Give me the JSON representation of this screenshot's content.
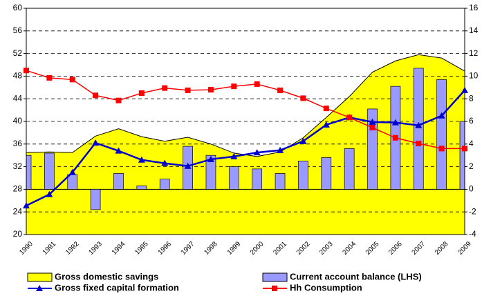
{
  "chart_data": {
    "type": "combo",
    "categories": [
      "1990",
      "1991",
      "1992",
      "1993",
      "1994",
      "1995",
      "1996",
      "1997",
      "1998",
      "1999",
      "2000",
      "2001",
      "2002",
      "2003",
      "2004",
      "2005",
      "2006",
      "2007",
      "2008",
      "2009"
    ],
    "ylim": [
      20,
      60
    ],
    "yticks": [
      20,
      24,
      28,
      32,
      36,
      40,
      44,
      48,
      52,
      56,
      60
    ],
    "y2lim": [
      -4,
      16
    ],
    "y2ticks": [
      -4,
      -2,
      0,
      2,
      4,
      6,
      8,
      10,
      12,
      14,
      16
    ],
    "grid": true,
    "series": [
      {
        "name": "Gross domestic savings",
        "type": "area",
        "color": "#ffff00",
        "values": [
          34.5,
          34.6,
          34.5,
          37.4,
          38.7,
          37.3,
          36.5,
          37.2,
          36.0,
          34.4,
          33.8,
          34.6,
          37.1,
          40.7,
          44.4,
          48.7,
          50.7,
          51.8,
          51.2,
          48.9
        ]
      },
      {
        "name": "Current account balance (LHS)",
        "type": "bar",
        "axis": "y2",
        "color": "#9999ff",
        "values": [
          3.0,
          3.2,
          1.3,
          -1.8,
          1.4,
          0.3,
          0.9,
          3.8,
          3.0,
          2.0,
          1.8,
          1.4,
          2.5,
          2.8,
          3.6,
          7.1,
          9.1,
          10.7,
          9.7,
          6.0
        ]
      },
      {
        "name": "Gross fixed capital formation",
        "type": "line",
        "marker": "triangle",
        "color": "#0000cc",
        "values": [
          25.1,
          27.1,
          31.0,
          36.2,
          34.8,
          33.2,
          32.6,
          32.1,
          33.3,
          33.8,
          34.5,
          34.9,
          36.5,
          39.4,
          40.7,
          39.9,
          39.8,
          39.3,
          41.0,
          45.5
        ]
      },
      {
        "name": "Hh Consumption",
        "type": "line",
        "marker": "square",
        "color": "#ff0000",
        "values": [
          49.0,
          47.7,
          47.4,
          44.6,
          43.7,
          45.0,
          45.9,
          45.5,
          45.6,
          46.2,
          46.6,
          45.5,
          44.1,
          42.3,
          40.7,
          38.9,
          37.1,
          36.1,
          35.2,
          35.2
        ]
      }
    ]
  }
}
